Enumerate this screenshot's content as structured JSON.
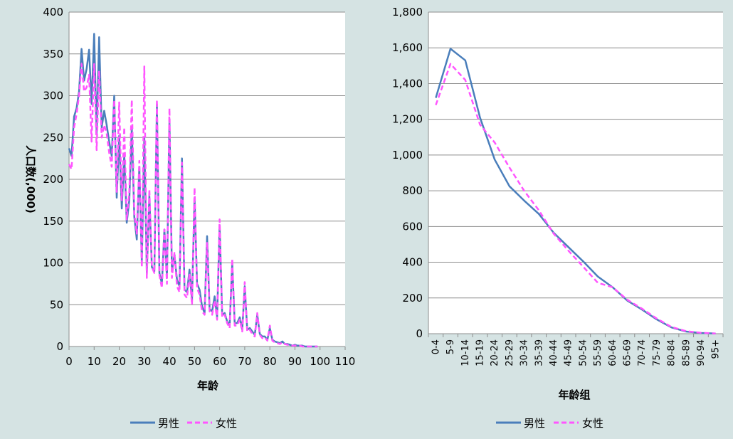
{
  "colors": {
    "background": "#d5e3e3",
    "plot_area": "#ffffff",
    "gridline": "#8c8c8c",
    "male": "#4a7ebb",
    "female": "#ff55ff"
  },
  "chart_data": [
    {
      "type": "line",
      "xlabel": "年龄",
      "ylabel": "人口数(,000)",
      "xlim": [
        0,
        110
      ],
      "ylim": [
        0,
        400
      ],
      "x_ticks": [
        "0",
        "10",
        "20",
        "30",
        "40",
        "50",
        "60",
        "70",
        "80",
        "90",
        "100",
        "110"
      ],
      "y_ticks": [
        "0",
        "50",
        "100",
        "150",
        "200",
        "250",
        "300",
        "350",
        "400"
      ],
      "grid": "horizontal",
      "legend_position": "bottom",
      "series": [
        {
          "name": "男性",
          "style": "solid",
          "x": [
            0,
            1,
            2,
            3,
            4,
            5,
            6,
            7,
            8,
            9,
            10,
            11,
            12,
            13,
            14,
            15,
            16,
            17,
            18,
            19,
            20,
            21,
            22,
            23,
            24,
            25,
            26,
            27,
            28,
            29,
            30,
            31,
            32,
            33,
            34,
            35,
            36,
            37,
            38,
            39,
            40,
            41,
            42,
            43,
            44,
            45,
            46,
            47,
            48,
            49,
            50,
            51,
            52,
            53,
            54,
            55,
            56,
            57,
            58,
            59,
            60,
            61,
            62,
            63,
            64,
            65,
            66,
            67,
            68,
            69,
            70,
            71,
            72,
            73,
            74,
            75,
            76,
            77,
            78,
            79,
            80,
            81,
            82,
            83,
            84,
            85,
            86,
            87,
            88,
            89,
            90,
            91,
            92,
            93,
            94,
            95,
            96,
            97,
            98,
            99
          ],
          "values": [
            237,
            228,
            275,
            285,
            305,
            356,
            318,
            332,
            355,
            290,
            374,
            255,
            370,
            262,
            282,
            265,
            245,
            228,
            300,
            178,
            252,
            165,
            230,
            148,
            175,
            262,
            155,
            128,
            215,
            100,
            250,
            88,
            180,
            95,
            90,
            290,
            88,
            75,
            140,
            82,
            270,
            90,
            110,
            80,
            72,
            225,
            68,
            65,
            92,
            55,
            178,
            75,
            68,
            48,
            40,
            132,
            45,
            42,
            60,
            35,
            145,
            38,
            40,
            30,
            25,
            100,
            28,
            28,
            35,
            20,
            72,
            20,
            22,
            18,
            14,
            38,
            15,
            12,
            12,
            8,
            22,
            8,
            6,
            5,
            4,
            6,
            3,
            3,
            2,
            1,
            2,
            1,
            1,
            1,
            0,
            0,
            0,
            0,
            0,
            0
          ]
        },
        {
          "name": "女性",
          "style": "dashed",
          "x": [
            0,
            1,
            2,
            3,
            4,
            5,
            6,
            7,
            8,
            9,
            10,
            11,
            12,
            13,
            14,
            15,
            16,
            17,
            18,
            19,
            20,
            21,
            22,
            23,
            24,
            25,
            26,
            27,
            28,
            29,
            30,
            31,
            32,
            33,
            34,
            35,
            36,
            37,
            38,
            39,
            40,
            41,
            42,
            43,
            44,
            45,
            46,
            47,
            48,
            49,
            50,
            51,
            52,
            53,
            54,
            55,
            56,
            57,
            58,
            59,
            60,
            61,
            62,
            63,
            64,
            65,
            66,
            67,
            68,
            69,
            70,
            71,
            72,
            73,
            74,
            75,
            76,
            77,
            78,
            79,
            80,
            81,
            82,
            83,
            84,
            85,
            86,
            87,
            88,
            89,
            90,
            91,
            92,
            93,
            94,
            95,
            96,
            97,
            98,
            99
          ],
          "values": [
            218,
            212,
            262,
            278,
            300,
            338,
            305,
            310,
            325,
            245,
            338,
            235,
            330,
            250,
            265,
            255,
            232,
            215,
            295,
            185,
            292,
            175,
            262,
            152,
            185,
            295,
            160,
            135,
            222,
            95,
            335,
            82,
            188,
            95,
            88,
            295,
            85,
            70,
            140,
            75,
            285,
            82,
            112,
            72,
            65,
            220,
            62,
            58,
            88,
            50,
            190,
            70,
            62,
            42,
            38,
            125,
            42,
            38,
            55,
            32,
            152,
            35,
            38,
            28,
            22,
            105,
            25,
            25,
            32,
            18,
            77,
            18,
            20,
            15,
            12,
            40,
            14,
            10,
            11,
            7,
            25,
            7,
            5,
            4,
            3,
            5,
            3,
            2,
            2,
            1,
            1,
            1,
            1,
            0,
            0,
            0,
            0,
            0,
            0,
            0
          ]
        }
      ]
    },
    {
      "type": "line",
      "xlabel": "年龄组",
      "ylabel": "",
      "ylim": [
        0,
        1800
      ],
      "y_ticks": [
        "0",
        "200",
        "400",
        "600",
        "800",
        "1,000",
        "1,200",
        "1,400",
        "1,600",
        "1,800"
      ],
      "grid": "horizontal",
      "legend_position": "bottom",
      "categories": [
        "0-4",
        "5-9",
        "10-14",
        "15-19",
        "20-24",
        "25-29",
        "30-34",
        "35-39",
        "40-44",
        "45-49",
        "50-54",
        "55-59",
        "60-64",
        "65-69",
        "70-74",
        "75-79",
        "80-84",
        "85-89",
        "90-94",
        "95+"
      ],
      "series": [
        {
          "name": "男性",
          "style": "solid",
          "values": [
            1320,
            1595,
            1530,
            1210,
            975,
            825,
            745,
            670,
            565,
            485,
            405,
            320,
            260,
            185,
            135,
            80,
            35,
            12,
            4,
            1
          ]
        },
        {
          "name": "女性",
          "style": "dashed",
          "values": [
            1280,
            1510,
            1420,
            1170,
            1070,
            930,
            800,
            690,
            560,
            465,
            375,
            285,
            260,
            190,
            140,
            85,
            38,
            14,
            5,
            1
          ]
        }
      ]
    }
  ]
}
